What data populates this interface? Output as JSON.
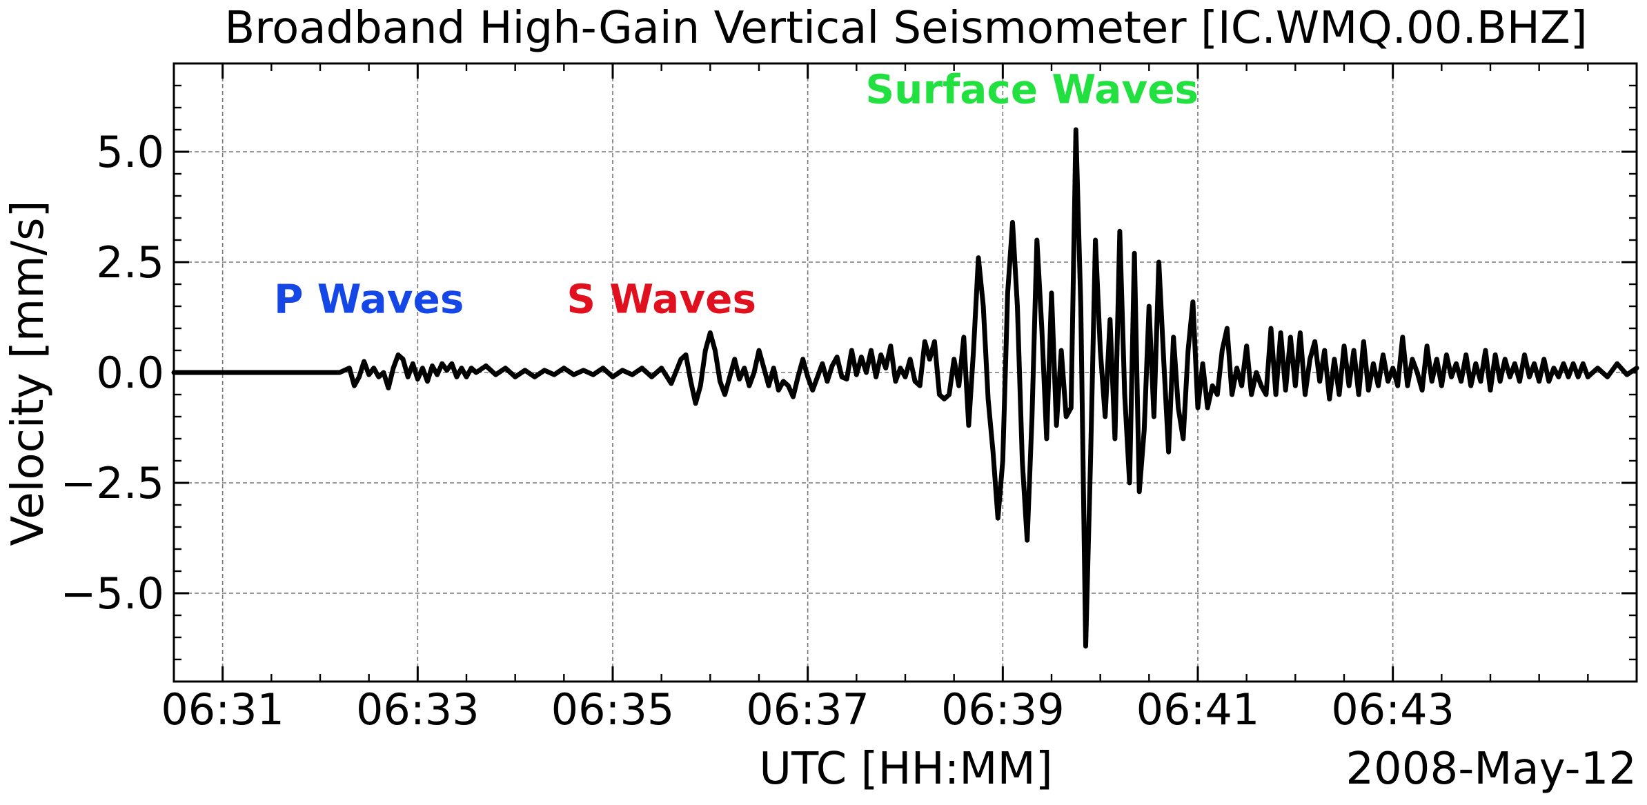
{
  "chart_data": {
    "type": "line",
    "title": "Broadband High-Gain Vertical Seismometer [IC.WMQ.00.BHZ]",
    "xlabel": "UTC [HH:MM]",
    "ylabel": "Velocity [mm/s]",
    "date_label": "2008-May-12",
    "x_unit": "minutes after 06:00 UTC",
    "xlim": [
      30.5,
      45.5
    ],
    "ylim": [
      -7.0,
      7.0
    ],
    "x_ticks": [
      31,
      33,
      35,
      37,
      39,
      41,
      43
    ],
    "x_tick_labels": [
      "06:31",
      "06:33",
      "06:35",
      "06:37",
      "06:39",
      "06:41",
      "06:43"
    ],
    "y_ticks": [
      -5.0,
      -2.5,
      0.0,
      2.5,
      5.0
    ],
    "y_tick_labels": [
      "−5.0",
      "−2.5",
      "0.0",
      "2.5",
      "5.0"
    ],
    "grid": true,
    "line_color": "#000000",
    "annotations": [
      {
        "text": "P Waves",
        "x": 32.5,
        "y": 1.35,
        "color": "#1447e6"
      },
      {
        "text": "S Waves",
        "x": 35.5,
        "y": 1.35,
        "color": "#e0101e"
      },
      {
        "text": "Surface Waves",
        "x": 39.3,
        "y": 6.1,
        "color": "#22e040"
      }
    ],
    "series": [
      {
        "values": [
          [
            30.5,
            0.0
          ],
          [
            32.2,
            0.0
          ],
          [
            32.25,
            0.05
          ],
          [
            32.3,
            0.1
          ],
          [
            32.35,
            -0.3
          ],
          [
            32.4,
            -0.1
          ],
          [
            32.45,
            0.25
          ],
          [
            32.5,
            -0.05
          ],
          [
            32.55,
            0.1
          ],
          [
            32.6,
            -0.1
          ],
          [
            32.65,
            0.0
          ],
          [
            32.7,
            -0.35
          ],
          [
            32.75,
            0.1
          ],
          [
            32.8,
            0.4
          ],
          [
            32.85,
            0.3
          ],
          [
            32.9,
            -0.1
          ],
          [
            32.95,
            0.2
          ],
          [
            33.0,
            -0.15
          ],
          [
            33.05,
            0.1
          ],
          [
            33.1,
            -0.2
          ],
          [
            33.15,
            0.15
          ],
          [
            33.2,
            -0.05
          ],
          [
            33.25,
            0.2
          ],
          [
            33.3,
            0.05
          ],
          [
            33.35,
            0.2
          ],
          [
            33.4,
            -0.1
          ],
          [
            33.45,
            0.1
          ],
          [
            33.5,
            -0.1
          ],
          [
            33.55,
            0.1
          ],
          [
            33.6,
            0.0
          ],
          [
            33.7,
            0.15
          ],
          [
            33.8,
            -0.05
          ],
          [
            33.9,
            0.1
          ],
          [
            34.0,
            -0.1
          ],
          [
            34.1,
            0.05
          ],
          [
            34.2,
            -0.1
          ],
          [
            34.3,
            0.05
          ],
          [
            34.4,
            -0.05
          ],
          [
            34.5,
            0.1
          ],
          [
            34.6,
            -0.05
          ],
          [
            34.7,
            0.05
          ],
          [
            34.8,
            -0.05
          ],
          [
            34.9,
            0.1
          ],
          [
            35.0,
            -0.1
          ],
          [
            35.1,
            0.05
          ],
          [
            35.2,
            -0.05
          ],
          [
            35.3,
            0.1
          ],
          [
            35.4,
            -0.1
          ],
          [
            35.5,
            0.1
          ],
          [
            35.6,
            -0.25
          ],
          [
            35.7,
            0.3
          ],
          [
            35.75,
            0.4
          ],
          [
            35.8,
            -0.2
          ],
          [
            35.85,
            -0.7
          ],
          [
            35.9,
            -0.3
          ],
          [
            35.95,
            0.5
          ],
          [
            36.0,
            0.9
          ],
          [
            36.05,
            0.5
          ],
          [
            36.1,
            -0.2
          ],
          [
            36.15,
            -0.5
          ],
          [
            36.2,
            -0.1
          ],
          [
            36.25,
            0.3
          ],
          [
            36.3,
            -0.15
          ],
          [
            36.35,
            0.1
          ],
          [
            36.4,
            -0.3
          ],
          [
            36.45,
            0.0
          ],
          [
            36.5,
            0.5
          ],
          [
            36.55,
            0.1
          ],
          [
            36.6,
            -0.3
          ],
          [
            36.65,
            0.1
          ],
          [
            36.7,
            -0.4
          ],
          [
            36.75,
            -0.2
          ],
          [
            36.8,
            -0.3
          ],
          [
            36.85,
            -0.55
          ],
          [
            36.9,
            -0.1
          ],
          [
            36.95,
            0.3
          ],
          [
            37.0,
            -0.1
          ],
          [
            37.05,
            -0.4
          ],
          [
            37.1,
            -0.1
          ],
          [
            37.15,
            0.2
          ],
          [
            37.2,
            -0.2
          ],
          [
            37.25,
            0.15
          ],
          [
            37.3,
            0.35
          ],
          [
            37.35,
            -0.1
          ],
          [
            37.4,
            -0.15
          ],
          [
            37.45,
            0.5
          ],
          [
            37.5,
            -0.05
          ],
          [
            37.55,
            0.35
          ],
          [
            37.6,
            0.0
          ],
          [
            37.65,
            0.5
          ],
          [
            37.7,
            -0.1
          ],
          [
            37.75,
            0.4
          ],
          [
            37.8,
            0.1
          ],
          [
            37.85,
            0.6
          ],
          [
            37.9,
            -0.2
          ],
          [
            37.95,
            0.1
          ],
          [
            38.0,
            -0.1
          ],
          [
            38.05,
            0.3
          ],
          [
            38.1,
            -0.2
          ],
          [
            38.15,
            -0.3
          ],
          [
            38.2,
            0.7
          ],
          [
            38.25,
            0.3
          ],
          [
            38.3,
            0.7
          ],
          [
            38.35,
            -0.5
          ],
          [
            38.4,
            -0.6
          ],
          [
            38.45,
            -0.5
          ],
          [
            38.5,
            0.3
          ],
          [
            38.55,
            -0.3
          ],
          [
            38.6,
            0.8
          ],
          [
            38.65,
            -1.2
          ],
          [
            38.7,
            0.5
          ],
          [
            38.75,
            2.6
          ],
          [
            38.8,
            1.5
          ],
          [
            38.85,
            -0.6
          ],
          [
            38.9,
            -1.8
          ],
          [
            38.95,
            -3.3
          ],
          [
            39.0,
            -2.0
          ],
          [
            39.05,
            1.8
          ],
          [
            39.1,
            3.4
          ],
          [
            39.15,
            1.5
          ],
          [
            39.2,
            -2.0
          ],
          [
            39.25,
            -3.8
          ],
          [
            39.3,
            -1.0
          ],
          [
            39.35,
            3.0
          ],
          [
            39.4,
            1.0
          ],
          [
            39.45,
            -1.5
          ],
          [
            39.5,
            1.8
          ],
          [
            39.55,
            -1.2
          ],
          [
            39.6,
            0.5
          ],
          [
            39.65,
            -1.0
          ],
          [
            39.7,
            -0.8
          ],
          [
            39.75,
            5.5
          ],
          [
            39.8,
            1.5
          ],
          [
            39.85,
            -6.2
          ],
          [
            39.9,
            -2.0
          ],
          [
            39.95,
            3.0
          ],
          [
            40.0,
            0.5
          ],
          [
            40.05,
            -1.0
          ],
          [
            40.1,
            1.2
          ],
          [
            40.15,
            -1.5
          ],
          [
            40.2,
            3.2
          ],
          [
            40.25,
            -0.5
          ],
          [
            40.3,
            -2.5
          ],
          [
            40.35,
            2.7
          ],
          [
            40.4,
            -2.7
          ],
          [
            40.45,
            -1.3
          ],
          [
            40.5,
            1.5
          ],
          [
            40.55,
            -1.0
          ],
          [
            40.6,
            2.5
          ],
          [
            40.65,
            0.3
          ],
          [
            40.7,
            -1.8
          ],
          [
            40.75,
            0.8
          ],
          [
            40.8,
            -0.8
          ],
          [
            40.85,
            -1.5
          ],
          [
            40.9,
            0.5
          ],
          [
            40.95,
            1.6
          ],
          [
            41.0,
            -0.8
          ],
          [
            41.05,
            0.2
          ],
          [
            41.1,
            -0.8
          ],
          [
            41.15,
            -0.3
          ],
          [
            41.2,
            -0.5
          ],
          [
            41.25,
            0.5
          ],
          [
            41.3,
            1.0
          ],
          [
            41.35,
            -0.5
          ],
          [
            41.4,
            0.1
          ],
          [
            41.45,
            -0.3
          ],
          [
            41.5,
            0.6
          ],
          [
            41.55,
            -0.5
          ],
          [
            41.6,
            0.0
          ],
          [
            41.65,
            -0.3
          ],
          [
            41.7,
            -0.5
          ],
          [
            41.75,
            1.0
          ],
          [
            41.8,
            -0.5
          ],
          [
            41.85,
            0.9
          ],
          [
            41.9,
            -0.4
          ],
          [
            41.95,
            0.8
          ],
          [
            42.0,
            -0.3
          ],
          [
            42.05,
            0.9
          ],
          [
            42.1,
            -0.5
          ],
          [
            42.15,
            0.3
          ],
          [
            42.2,
            0.7
          ],
          [
            42.25,
            -0.2
          ],
          [
            42.3,
            0.5
          ],
          [
            42.35,
            -0.6
          ],
          [
            42.4,
            0.3
          ],
          [
            42.45,
            -0.5
          ],
          [
            42.5,
            0.6
          ],
          [
            42.55,
            -0.3
          ],
          [
            42.6,
            0.5
          ],
          [
            42.65,
            -0.5
          ],
          [
            42.7,
            0.7
          ],
          [
            42.75,
            -0.4
          ],
          [
            42.8,
            0.2
          ],
          [
            42.85,
            -0.3
          ],
          [
            42.9,
            0.4
          ],
          [
            42.95,
            -0.2
          ],
          [
            43.0,
            0.1
          ],
          [
            43.05,
            -0.3
          ],
          [
            43.1,
            0.8
          ],
          [
            43.15,
            -0.3
          ],
          [
            43.2,
            0.3
          ],
          [
            43.25,
            0.0
          ],
          [
            43.3,
            -0.4
          ],
          [
            43.35,
            0.6
          ],
          [
            43.4,
            -0.2
          ],
          [
            43.45,
            0.3
          ],
          [
            43.5,
            -0.3
          ],
          [
            43.55,
            0.4
          ],
          [
            43.6,
            -0.1
          ],
          [
            43.65,
            0.2
          ],
          [
            43.7,
            -0.2
          ],
          [
            43.75,
            0.4
          ],
          [
            43.8,
            -0.3
          ],
          [
            43.85,
            0.2
          ],
          [
            43.9,
            -0.2
          ],
          [
            43.95,
            0.5
          ],
          [
            44.0,
            -0.4
          ],
          [
            44.05,
            0.4
          ],
          [
            44.1,
            -0.2
          ],
          [
            44.15,
            0.3
          ],
          [
            44.2,
            -0.1
          ],
          [
            44.25,
            0.2
          ],
          [
            44.3,
            -0.2
          ],
          [
            44.35,
            0.4
          ],
          [
            44.4,
            -0.1
          ],
          [
            44.45,
            0.2
          ],
          [
            44.5,
            -0.2
          ],
          [
            44.55,
            0.3
          ],
          [
            44.6,
            -0.2
          ],
          [
            44.65,
            0.1
          ],
          [
            44.7,
            -0.1
          ],
          [
            44.75,
            0.2
          ],
          [
            44.8,
            -0.1
          ],
          [
            44.85,
            0.2
          ],
          [
            44.9,
            -0.1
          ],
          [
            44.95,
            0.2
          ],
          [
            45.0,
            -0.1
          ],
          [
            45.1,
            0.1
          ],
          [
            45.2,
            -0.1
          ],
          [
            45.3,
            0.2
          ],
          [
            45.4,
            -0.05
          ],
          [
            45.5,
            0.1
          ]
        ]
      }
    ]
  }
}
